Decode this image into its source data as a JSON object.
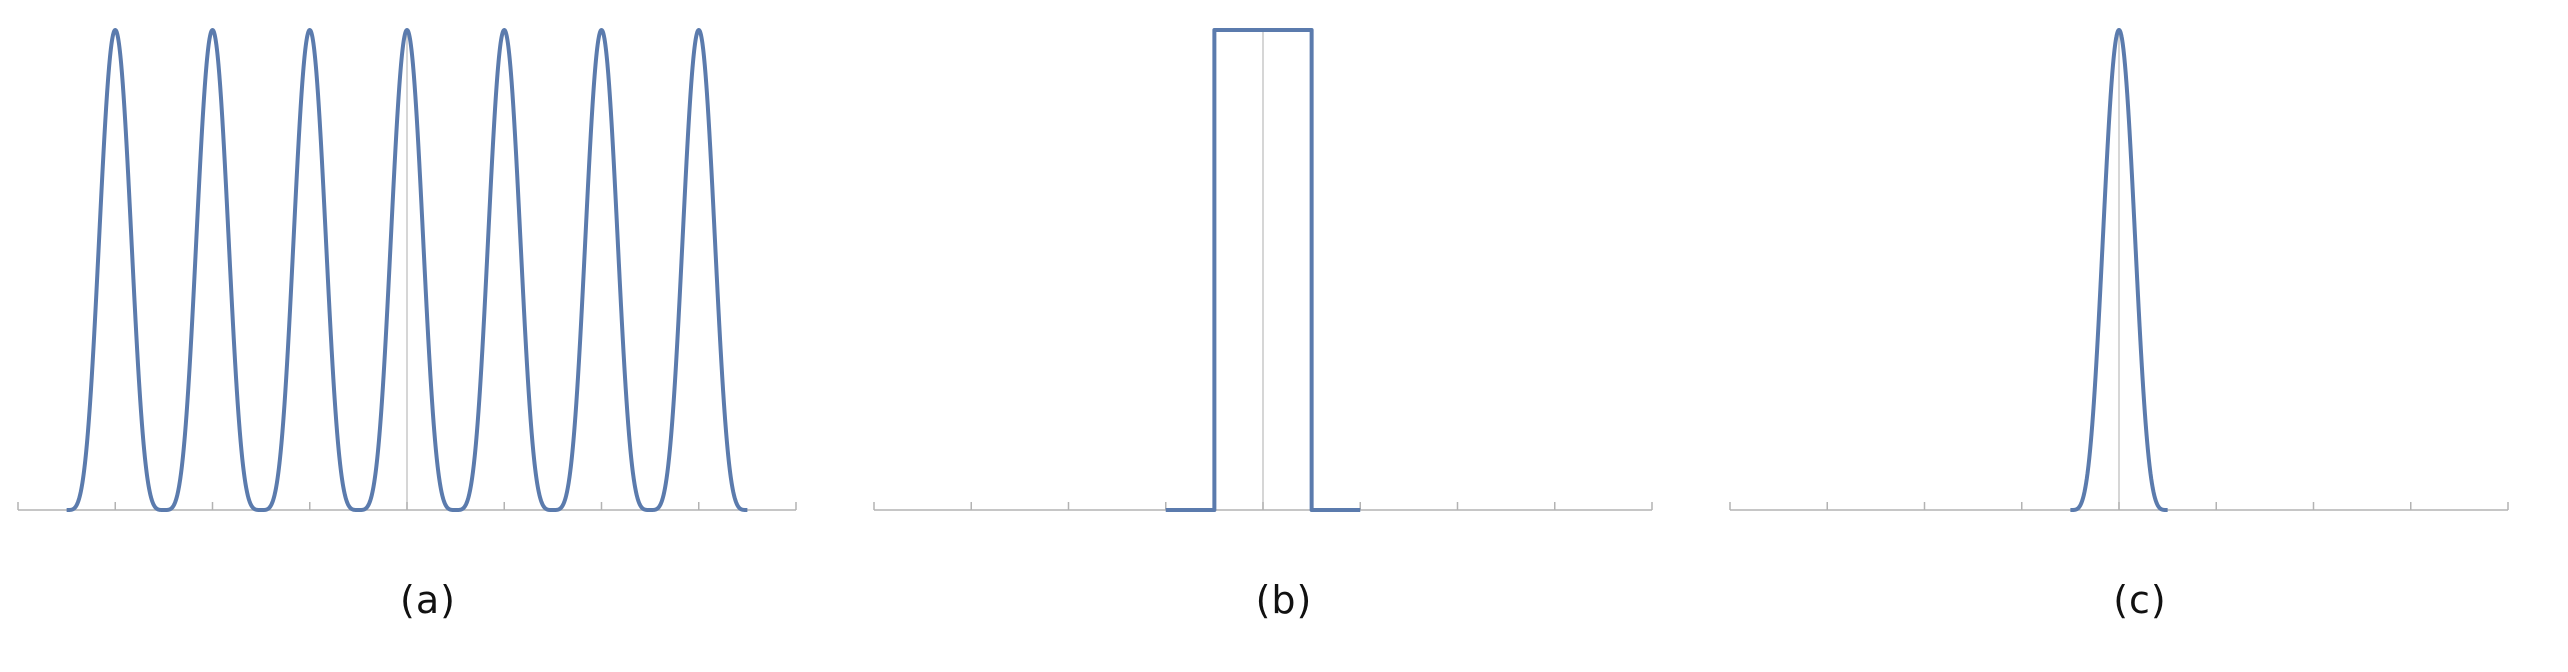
{
  "style": {
    "series_color": "#5b7bad",
    "axis_color": "#b3b3b3",
    "grid_color": "#c8c8c8"
  },
  "chart_data": [
    {
      "type": "line",
      "panel_label": "(a)",
      "xlim": [
        -4,
        4
      ],
      "ylim": [
        0,
        1
      ],
      "x_ticks": [
        -4,
        -3,
        -2,
        -1,
        0,
        1,
        2,
        3,
        4
      ],
      "grid_x": [
        0
      ],
      "curve": {
        "kind": "periodic_pulse",
        "centers": [
          -3,
          -2,
          -1,
          0,
          1,
          2,
          3
        ],
        "support": [
          -3.5,
          3.5
        ],
        "half_width": 0.5,
        "peak": 1
      }
    },
    {
      "type": "line",
      "panel_label": "(b)",
      "xlim": [
        -4,
        4
      ],
      "ylim": [
        0,
        1
      ],
      "x_ticks": [
        -4,
        -3,
        -2,
        -1,
        0,
        1,
        2,
        3,
        4
      ],
      "grid_x": [
        0
      ],
      "curve": {
        "kind": "rect",
        "support": [
          -1,
          1
        ],
        "high": [
          -0.5,
          0.5
        ],
        "peak": 1
      }
    },
    {
      "type": "line",
      "panel_label": "(c)",
      "xlim": [
        -4,
        4
      ],
      "ylim": [
        0,
        1
      ],
      "x_ticks": [
        -4,
        -3,
        -2,
        -1,
        0,
        1,
        2,
        3,
        4
      ],
      "grid_x": [
        0
      ],
      "curve": {
        "kind": "single_pulse",
        "centers": [
          0
        ],
        "support": [
          -0.5,
          0.5
        ],
        "half_width": 0.5,
        "peak": 1
      }
    }
  ]
}
